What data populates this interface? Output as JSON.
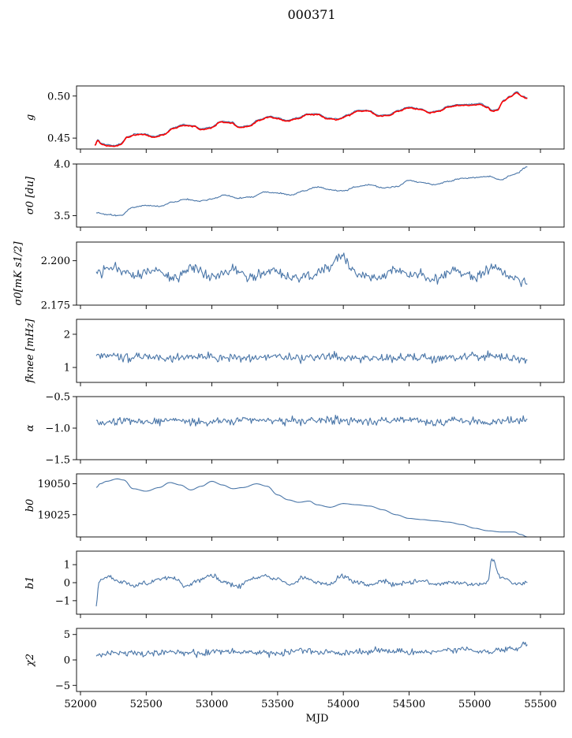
{
  "figure_title": "000371",
  "colors": {
    "main_line": "#4a76a8",
    "fit_line": "#ff0000",
    "axis": "#000000"
  },
  "chart_data": [
    {
      "type": "line",
      "panel": "g",
      "ylabel": "g",
      "ylim": [
        0.437,
        0.512
      ],
      "yticks": [
        {
          "v": 0.45,
          "label": "0.45"
        },
        {
          "v": 0.5,
          "label": "0.50"
        }
      ],
      "xlim": [
        51970,
        55680
      ],
      "series": [
        {
          "name": "g",
          "color": "#4a76a8",
          "x": [
            52110,
            52130,
            52160,
            52200,
            52260,
            52300,
            52360,
            52420,
            52480,
            52560,
            52640,
            52700,
            52780,
            52860,
            52920,
            52990,
            53070,
            53150,
            53210,
            53280,
            53360,
            53440,
            53500,
            53570,
            53650,
            53730,
            53800,
            53880,
            53960,
            54040,
            54110,
            54190,
            54270,
            54340,
            54420,
            54500,
            54580,
            54660,
            54730,
            54800,
            54880,
            54960,
            55040,
            55100,
            55130,
            55170,
            55220,
            55270,
            55320,
            55360,
            55400
          ],
          "y": [
            0.442,
            0.448,
            0.444,
            0.442,
            0.441,
            0.443,
            0.452,
            0.455,
            0.455,
            0.452,
            0.455,
            0.462,
            0.466,
            0.465,
            0.461,
            0.463,
            0.47,
            0.469,
            0.463,
            0.465,
            0.472,
            0.476,
            0.474,
            0.471,
            0.474,
            0.479,
            0.479,
            0.474,
            0.473,
            0.478,
            0.483,
            0.483,
            0.477,
            0.478,
            0.483,
            0.487,
            0.485,
            0.481,
            0.483,
            0.488,
            0.49,
            0.49,
            0.491,
            0.487,
            0.483,
            0.484,
            0.495,
            0.5,
            0.505,
            0.5,
            0.498
          ]
        },
        {
          "name": "fit",
          "color": "#ff0000",
          "x": [
            52110,
            52130,
            52160,
            52200,
            52260,
            52300,
            52360,
            52420,
            52480,
            52560,
            52640,
            52700,
            52780,
            52860,
            52920,
            52990,
            53070,
            53150,
            53210,
            53280,
            53360,
            53440,
            53500,
            53570,
            53650,
            53730,
            53800,
            53880,
            53960,
            54040,
            54110,
            54190,
            54270,
            54340,
            54420,
            54500,
            54580,
            54660,
            54730,
            54800,
            54880,
            54960,
            55040,
            55100,
            55130,
            55170,
            55220,
            55270,
            55320,
            55360,
            55400
          ],
          "y": [
            0.441,
            0.447,
            0.443,
            0.441,
            0.44,
            0.442,
            0.451,
            0.454,
            0.454,
            0.451,
            0.454,
            0.461,
            0.465,
            0.464,
            0.46,
            0.462,
            0.469,
            0.468,
            0.462,
            0.464,
            0.471,
            0.475,
            0.473,
            0.47,
            0.473,
            0.478,
            0.478,
            0.473,
            0.472,
            0.477,
            0.482,
            0.482,
            0.476,
            0.477,
            0.482,
            0.486,
            0.484,
            0.48,
            0.482,
            0.487,
            0.489,
            0.489,
            0.49,
            0.486,
            0.482,
            0.483,
            0.494,
            0.499,
            0.504,
            0.499,
            0.497
          ]
        }
      ]
    },
    {
      "type": "line",
      "panel": "sigma0",
      "ylabel": "σ0 [du]",
      "ylim": [
        3.39,
        4.0
      ],
      "yticks": [
        {
          "v": 3.5,
          "label": "3.5"
        },
        {
          "v": 4.0,
          "label": "4.0"
        }
      ],
      "xlim": [
        51970,
        55680
      ],
      "series": [
        {
          "name": "sigma0",
          "color": "#4a76a8",
          "x": [
            52120,
            52200,
            52300,
            52400,
            52500,
            52600,
            52700,
            52800,
            52900,
            53000,
            53100,
            53200,
            53300,
            53400,
            53500,
            53600,
            53700,
            53800,
            53900,
            54000,
            54100,
            54200,
            54300,
            54400,
            54500,
            54600,
            54700,
            54800,
            54900,
            55000,
            55100,
            55200,
            55300,
            55400
          ],
          "y": [
            3.53,
            3.51,
            3.5,
            3.58,
            3.6,
            3.59,
            3.63,
            3.66,
            3.64,
            3.66,
            3.7,
            3.67,
            3.68,
            3.73,
            3.72,
            3.7,
            3.74,
            3.78,
            3.75,
            3.74,
            3.78,
            3.8,
            3.77,
            3.78,
            3.84,
            3.82,
            3.8,
            3.83,
            3.86,
            3.87,
            3.88,
            3.85,
            3.9,
            3.97
          ]
        }
      ]
    },
    {
      "type": "line",
      "panel": "sigma0_mks",
      "ylabel": "σ0[mK s1/2]",
      "ylim": [
        2.175,
        2.2105
      ],
      "yticks": [
        {
          "v": 2.175,
          "label": "2.175"
        },
        {
          "v": 2.2,
          "label": "2.200"
        }
      ],
      "xlim": [
        51970,
        55680
      ],
      "series": [
        {
          "name": "sigma0_mks",
          "color": "#4a76a8",
          "x": [
            52120,
            52250,
            52400,
            52550,
            52700,
            52850,
            53000,
            53150,
            53300,
            53450,
            53600,
            53750,
            53900,
            53980,
            54100,
            54250,
            54400,
            54550,
            54700,
            54850,
            55000,
            55150,
            55300,
            55400
          ],
          "y": [
            2.193,
            2.196,
            2.192,
            2.195,
            2.19,
            2.196,
            2.191,
            2.195,
            2.191,
            2.194,
            2.19,
            2.192,
            2.196,
            2.203,
            2.193,
            2.19,
            2.195,
            2.192,
            2.19,
            2.194,
            2.191,
            2.196,
            2.19,
            2.187
          ]
        }
      ]
    },
    {
      "type": "line",
      "panel": "fknee",
      "ylabel": "fknee [mHz]",
      "ylim": [
        0.55,
        2.45
      ],
      "yticks": [
        {
          "v": 1,
          "label": "1"
        },
        {
          "v": 2,
          "label": "2"
        }
      ],
      "xlim": [
        51970,
        55680
      ],
      "series": [
        {
          "name": "fknee",
          "color": "#4a76a8",
          "x": [
            52120,
            52300,
            52500,
            52700,
            52900,
            53100,
            53300,
            53500,
            53700,
            53900,
            54100,
            54300,
            54500,
            54700,
            54900,
            55100,
            55300,
            55400
          ],
          "y": [
            1.35,
            1.3,
            1.32,
            1.28,
            1.33,
            1.3,
            1.27,
            1.31,
            1.29,
            1.34,
            1.28,
            1.3,
            1.32,
            1.27,
            1.31,
            1.35,
            1.28,
            1.22
          ]
        }
      ]
    },
    {
      "type": "line",
      "panel": "alpha",
      "ylabel": "α",
      "ylim": [
        -1.5,
        -0.5
      ],
      "yticks": [
        {
          "v": -1.5,
          "label": "−1.5"
        },
        {
          "v": -1.0,
          "label": "−1.0"
        },
        {
          "v": -0.5,
          "label": "−0.5"
        }
      ],
      "xlim": [
        51970,
        55680
      ],
      "series": [
        {
          "name": "alpha",
          "color": "#4a76a8",
          "x": [
            52120,
            52300,
            52500,
            52700,
            52900,
            53100,
            53300,
            53500,
            53700,
            53900,
            54100,
            54300,
            54500,
            54700,
            54900,
            55100,
            55300,
            55400
          ],
          "y": [
            -0.92,
            -0.88,
            -0.9,
            -0.87,
            -0.91,
            -0.89,
            -0.86,
            -0.9,
            -0.88,
            -0.87,
            -0.9,
            -0.89,
            -0.88,
            -0.91,
            -0.87,
            -0.9,
            -0.89,
            -0.86
          ]
        }
      ]
    },
    {
      "type": "line",
      "panel": "b0",
      "ylabel": "b0",
      "ylim": [
        19007,
        19058
      ],
      "yticks": [
        {
          "v": 19025,
          "label": "19025"
        },
        {
          "v": 19050,
          "label": "19050"
        }
      ],
      "xlim": [
        51970,
        55680
      ],
      "series": [
        {
          "name": "b0",
          "color": "#4a76a8",
          "x": [
            52120,
            52150,
            52200,
            52280,
            52330,
            52400,
            52500,
            52600,
            52680,
            52760,
            52840,
            52920,
            53000,
            53080,
            53160,
            53240,
            53340,
            53420,
            53500,
            53580,
            53660,
            53740,
            53800,
            53900,
            54000,
            54100,
            54200,
            54300,
            54400,
            54500,
            54600,
            54700,
            54800,
            54900,
            55000,
            55100,
            55200,
            55300,
            55350,
            55400
          ],
          "y": [
            19047,
            19050,
            19052,
            19054,
            19053,
            19046,
            19044,
            19047,
            19051,
            19049,
            19045,
            19048,
            19052,
            19049,
            19046,
            19047,
            19050,
            19048,
            19041,
            19037,
            19035,
            19036,
            19033,
            19031,
            19034,
            19033,
            19032,
            19029,
            19025,
            19022,
            19021,
            19020,
            19019,
            19017,
            19014,
            19012,
            19011,
            19011,
            19009,
            19007
          ]
        }
      ]
    },
    {
      "type": "line",
      "panel": "b1",
      "ylabel": "b1",
      "ylim": [
        -1.75,
        1.75
      ],
      "yticks": [
        {
          "v": -1,
          "label": "−1"
        },
        {
          "v": 0,
          "label": "0"
        },
        {
          "v": 1,
          "label": "1"
        }
      ],
      "xlim": [
        51970,
        55680
      ],
      "series": [
        {
          "name": "b1",
          "color": "#4a76a8",
          "x": [
            52120,
            52140,
            52200,
            52300,
            52400,
            52500,
            52600,
            52700,
            52800,
            52900,
            53000,
            53100,
            53200,
            53300,
            53400,
            53500,
            53600,
            53700,
            53800,
            53900,
            53990,
            54100,
            54200,
            54300,
            54400,
            54500,
            54600,
            54700,
            54800,
            54900,
            55000,
            55100,
            55130,
            55200,
            55300,
            55400
          ],
          "y": [
            -1.3,
            0.1,
            0.3,
            0.1,
            -0.2,
            0.0,
            0.2,
            0.3,
            -0.2,
            0.1,
            0.4,
            0.0,
            -0.2,
            0.2,
            0.4,
            0.2,
            -0.1,
            0.3,
            0.0,
            -0.1,
            0.4,
            0.0,
            -0.1,
            0.1,
            -0.1,
            0.0,
            0.1,
            -0.1,
            0.0,
            0.0,
            -0.1,
            0.0,
            1.3,
            0.3,
            -0.1,
            0.0
          ]
        }
      ]
    },
    {
      "type": "line",
      "panel": "chi2",
      "ylabel": "χ2",
      "ylim": [
        -6.2,
        6.2
      ],
      "yticks": [
        {
          "v": -5,
          "label": "−5"
        },
        {
          "v": 0,
          "label": "0"
        },
        {
          "v": 5,
          "label": "5"
        }
      ],
      "xlim": [
        51970,
        55680
      ],
      "xticks": [
        {
          "v": 52000,
          "label": "52000"
        },
        {
          "v": 52500,
          "label": "52500"
        },
        {
          "v": 53000,
          "label": "53000"
        },
        {
          "v": 53500,
          "label": "53500"
        },
        {
          "v": 54000,
          "label": "54000"
        },
        {
          "v": 54500,
          "label": "54500"
        },
        {
          "v": 55000,
          "label": "55000"
        },
        {
          "v": 55500,
          "label": "55500"
        }
      ],
      "xlabel": "MJD",
      "series": [
        {
          "name": "chi2",
          "color": "#4a76a8",
          "x": [
            52120,
            52300,
            52500,
            52700,
            52900,
            53100,
            53300,
            53500,
            53700,
            53900,
            54100,
            54300,
            54500,
            54700,
            54900,
            55100,
            55300,
            55400
          ],
          "y": [
            1.0,
            1.4,
            1.2,
            1.6,
            1.3,
            1.7,
            1.5,
            1.2,
            1.8,
            1.4,
            1.6,
            1.9,
            1.5,
            1.7,
            2.0,
            1.6,
            2.3,
            3.0
          ]
        }
      ]
    }
  ]
}
